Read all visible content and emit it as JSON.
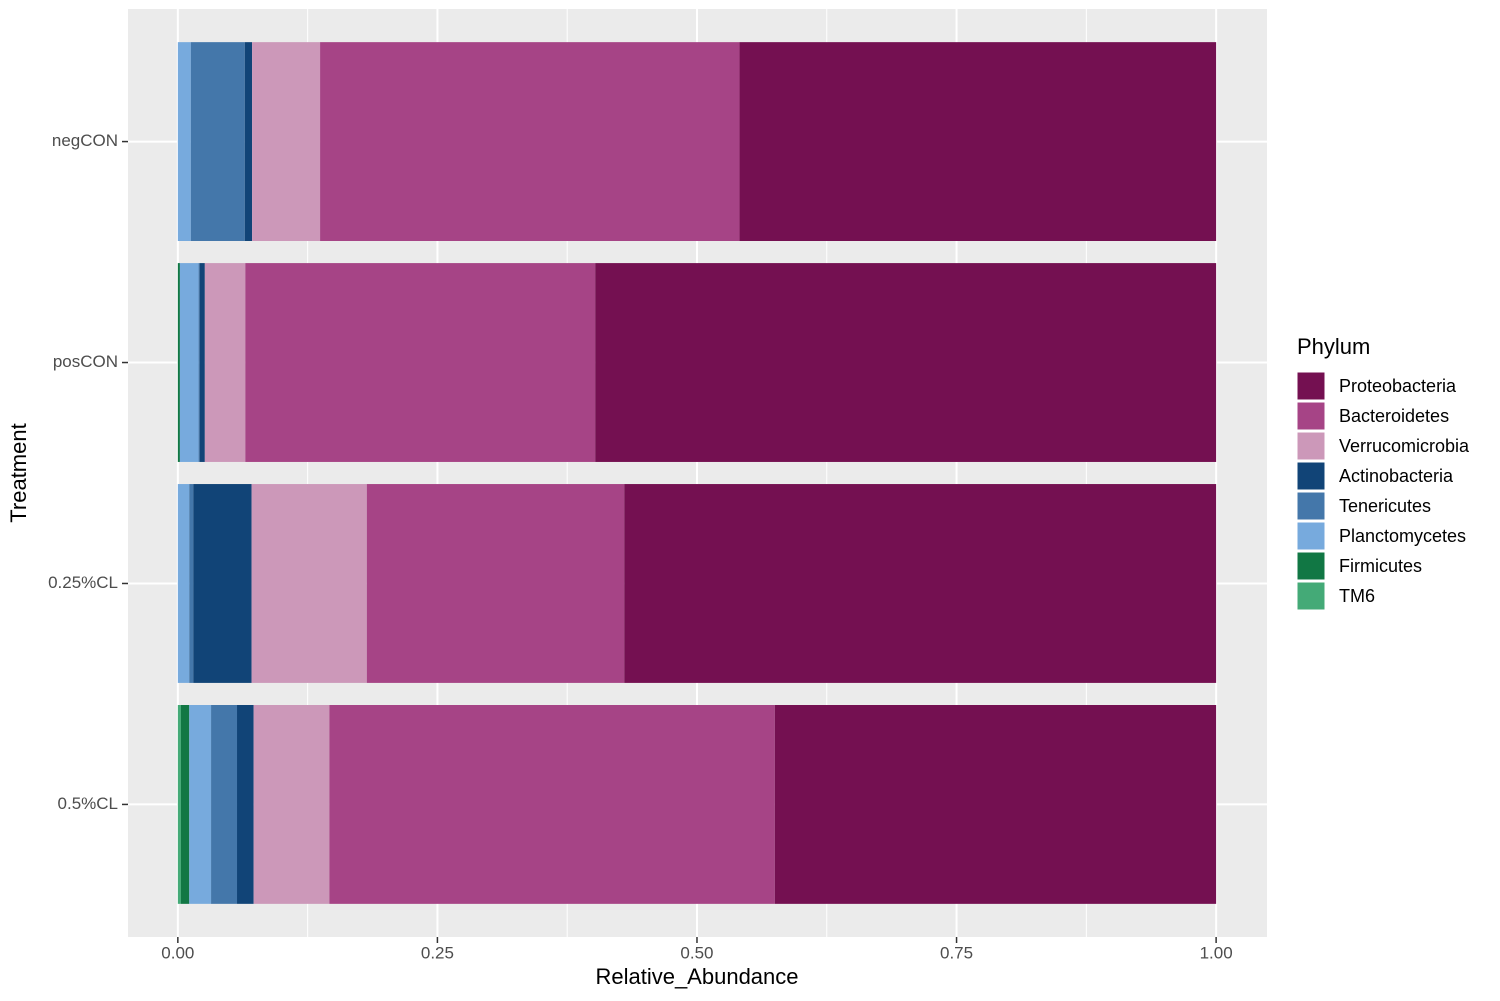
{
  "chart_data": {
    "type": "stacked-bar-horizontal",
    "x_label": "Relative_Abundance",
    "y_label": "Treatment",
    "legend_title": "Phylum",
    "categories": [
      "negCON",
      "posCON",
      "0.25%CL",
      "0.5%CL"
    ],
    "series": [
      {
        "name": "Proteobacteria",
        "color": "#741051",
        "values": [
          0.459,
          0.598,
          0.57,
          0.425
        ]
      },
      {
        "name": "Bacteroidetes",
        "color": "#a64486",
        "values": [
          0.404,
          0.337,
          0.248,
          0.429
        ]
      },
      {
        "name": "Verrucomicrobia",
        "color": "#cc98b9",
        "values": [
          0.0655,
          0.039,
          0.111,
          0.073
        ]
      },
      {
        "name": "Actinobacteria",
        "color": "#114477",
        "values": [
          0.007,
          0.005,
          0.056,
          0.016
        ]
      },
      {
        "name": "Tenericutes",
        "color": "#4477aa",
        "values": [
          0.052,
          0.001,
          0.004,
          0.025
        ]
      },
      {
        "name": "Planctomycetes",
        "color": "#77aadd",
        "values": [
          0.0125,
          0.018,
          0.011,
          0.021
        ]
      },
      {
        "name": "Firmicutes",
        "color": "#117744",
        "values": [
          0,
          0.002,
          0,
          0.008
        ]
      },
      {
        "name": "TM6",
        "color": "#44aa77",
        "values": [
          0,
          0,
          0,
          0.003
        ]
      }
    ],
    "xlim": [
      -0.048,
      1.049
    ],
    "xticks": [
      {
        "value": 0,
        "label": "0.00"
      },
      0.25,
      {
        "value": 0.5,
        "label": "0.50"
      },
      0.75,
      {
        "value": 1,
        "label": "1.00"
      }
    ],
    "grid": true
  }
}
